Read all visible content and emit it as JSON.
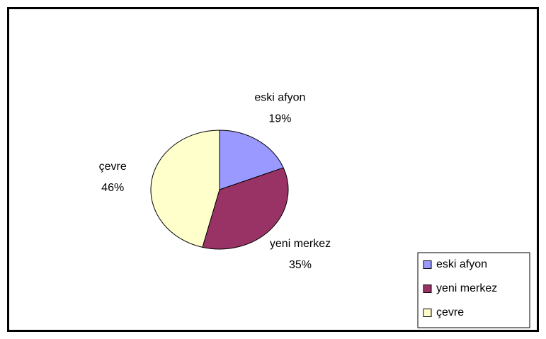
{
  "chart_data": {
    "type": "pie",
    "categories": [
      "eski afyon",
      "yeni merkez",
      "çevre"
    ],
    "values": [
      19,
      35,
      46
    ],
    "value_labels": [
      "19%",
      "35%",
      "46%"
    ],
    "colors": [
      "#9999ff",
      "#993366",
      "#ffffcc"
    ],
    "legend": "bottom-right"
  }
}
